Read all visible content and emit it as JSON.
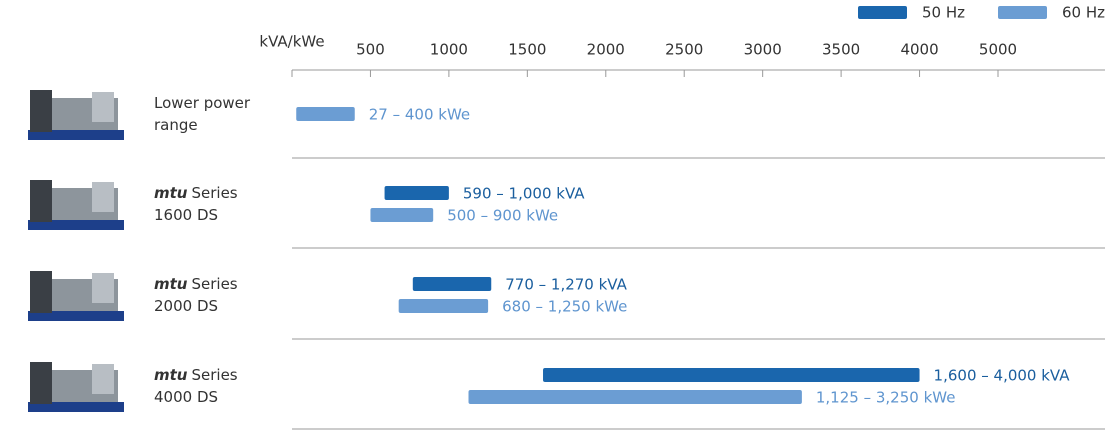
{
  "chart_data": {
    "type": "range_bar",
    "x_label": "kVA/kWe",
    "xlim": [
      0,
      5000
    ],
    "xticks": [
      500,
      1000,
      1500,
      2000,
      2500,
      3000,
      3500,
      4000,
      5000
    ],
    "categories": [
      "Lower power range",
      "Series 1600 DS",
      "Series 2000 DS",
      "Series 4000 DS"
    ],
    "category_brand": [
      null,
      "mtu",
      "mtu",
      "mtu"
    ],
    "series": [
      {
        "name": "50 Hz",
        "color": "#1a66ad",
        "label_color": "#1a5e9e",
        "values": [
          null,
          [
            590,
            1000
          ],
          [
            770,
            1270
          ],
          [
            1600,
            4000
          ]
        ],
        "value_labels": [
          null,
          "590 – 1,000 kVA",
          "770 – 1,270 kVA",
          "1,600 – 4,000 kVA"
        ]
      },
      {
        "name": "60 Hz",
        "color": "#6b9dd3",
        "label_color": "#5f95cf",
        "values": [
          [
            27,
            400
          ],
          [
            500,
            900
          ],
          [
            680,
            1250
          ],
          [
            1125,
            3250
          ]
        ],
        "value_labels": [
          "27 – 400 kWe",
          "500 – 900 kWe",
          "680 – 1,250 kWe",
          "1,125 – 3,250 kWe"
        ]
      }
    ]
  }
}
